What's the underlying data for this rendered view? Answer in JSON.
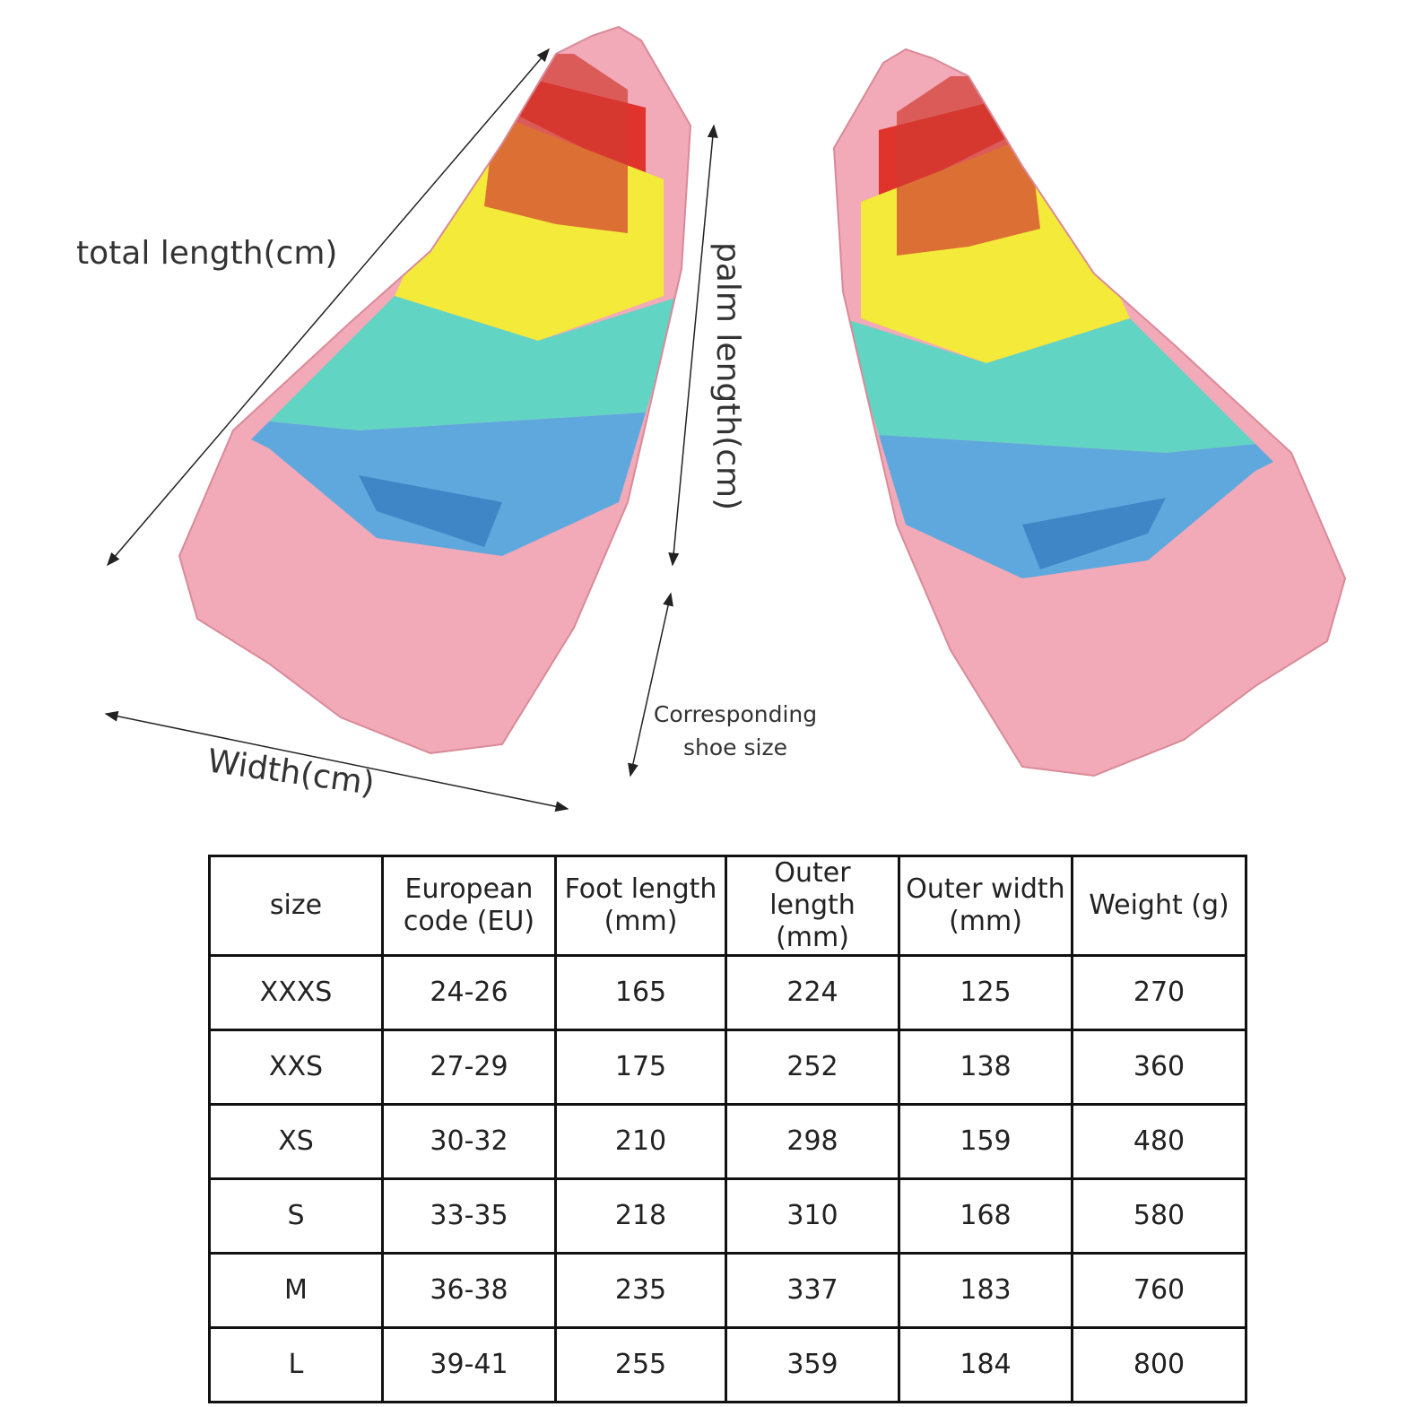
{
  "diagram": {
    "labels": {
      "total_length": "total length(cm)",
      "palm_length": "palm length(cm)",
      "shoe_size": "Corresponding shoe size",
      "width": "Width(cm)"
    }
  },
  "table": {
    "header": [
      "size",
      "European code (EU)",
      "Foot length (mm)",
      "Outer length (mm)",
      "Outer width (mm)",
      "Weight (g)"
    ],
    "rows": [
      [
        "XXXS",
        "24-26",
        "165",
        "224",
        "125",
        "270"
      ],
      [
        "XXS",
        "27-29",
        "175",
        "252",
        "138",
        "360"
      ],
      [
        "XS",
        "30-32",
        "210",
        "298",
        "159",
        "480"
      ],
      [
        "S",
        "33-35",
        "218",
        "310",
        "168",
        "580"
      ],
      [
        "M",
        "36-38",
        "235",
        "337",
        "183",
        "760"
      ],
      [
        "L",
        "39-41",
        "255",
        "359",
        "184",
        "800"
      ]
    ]
  }
}
